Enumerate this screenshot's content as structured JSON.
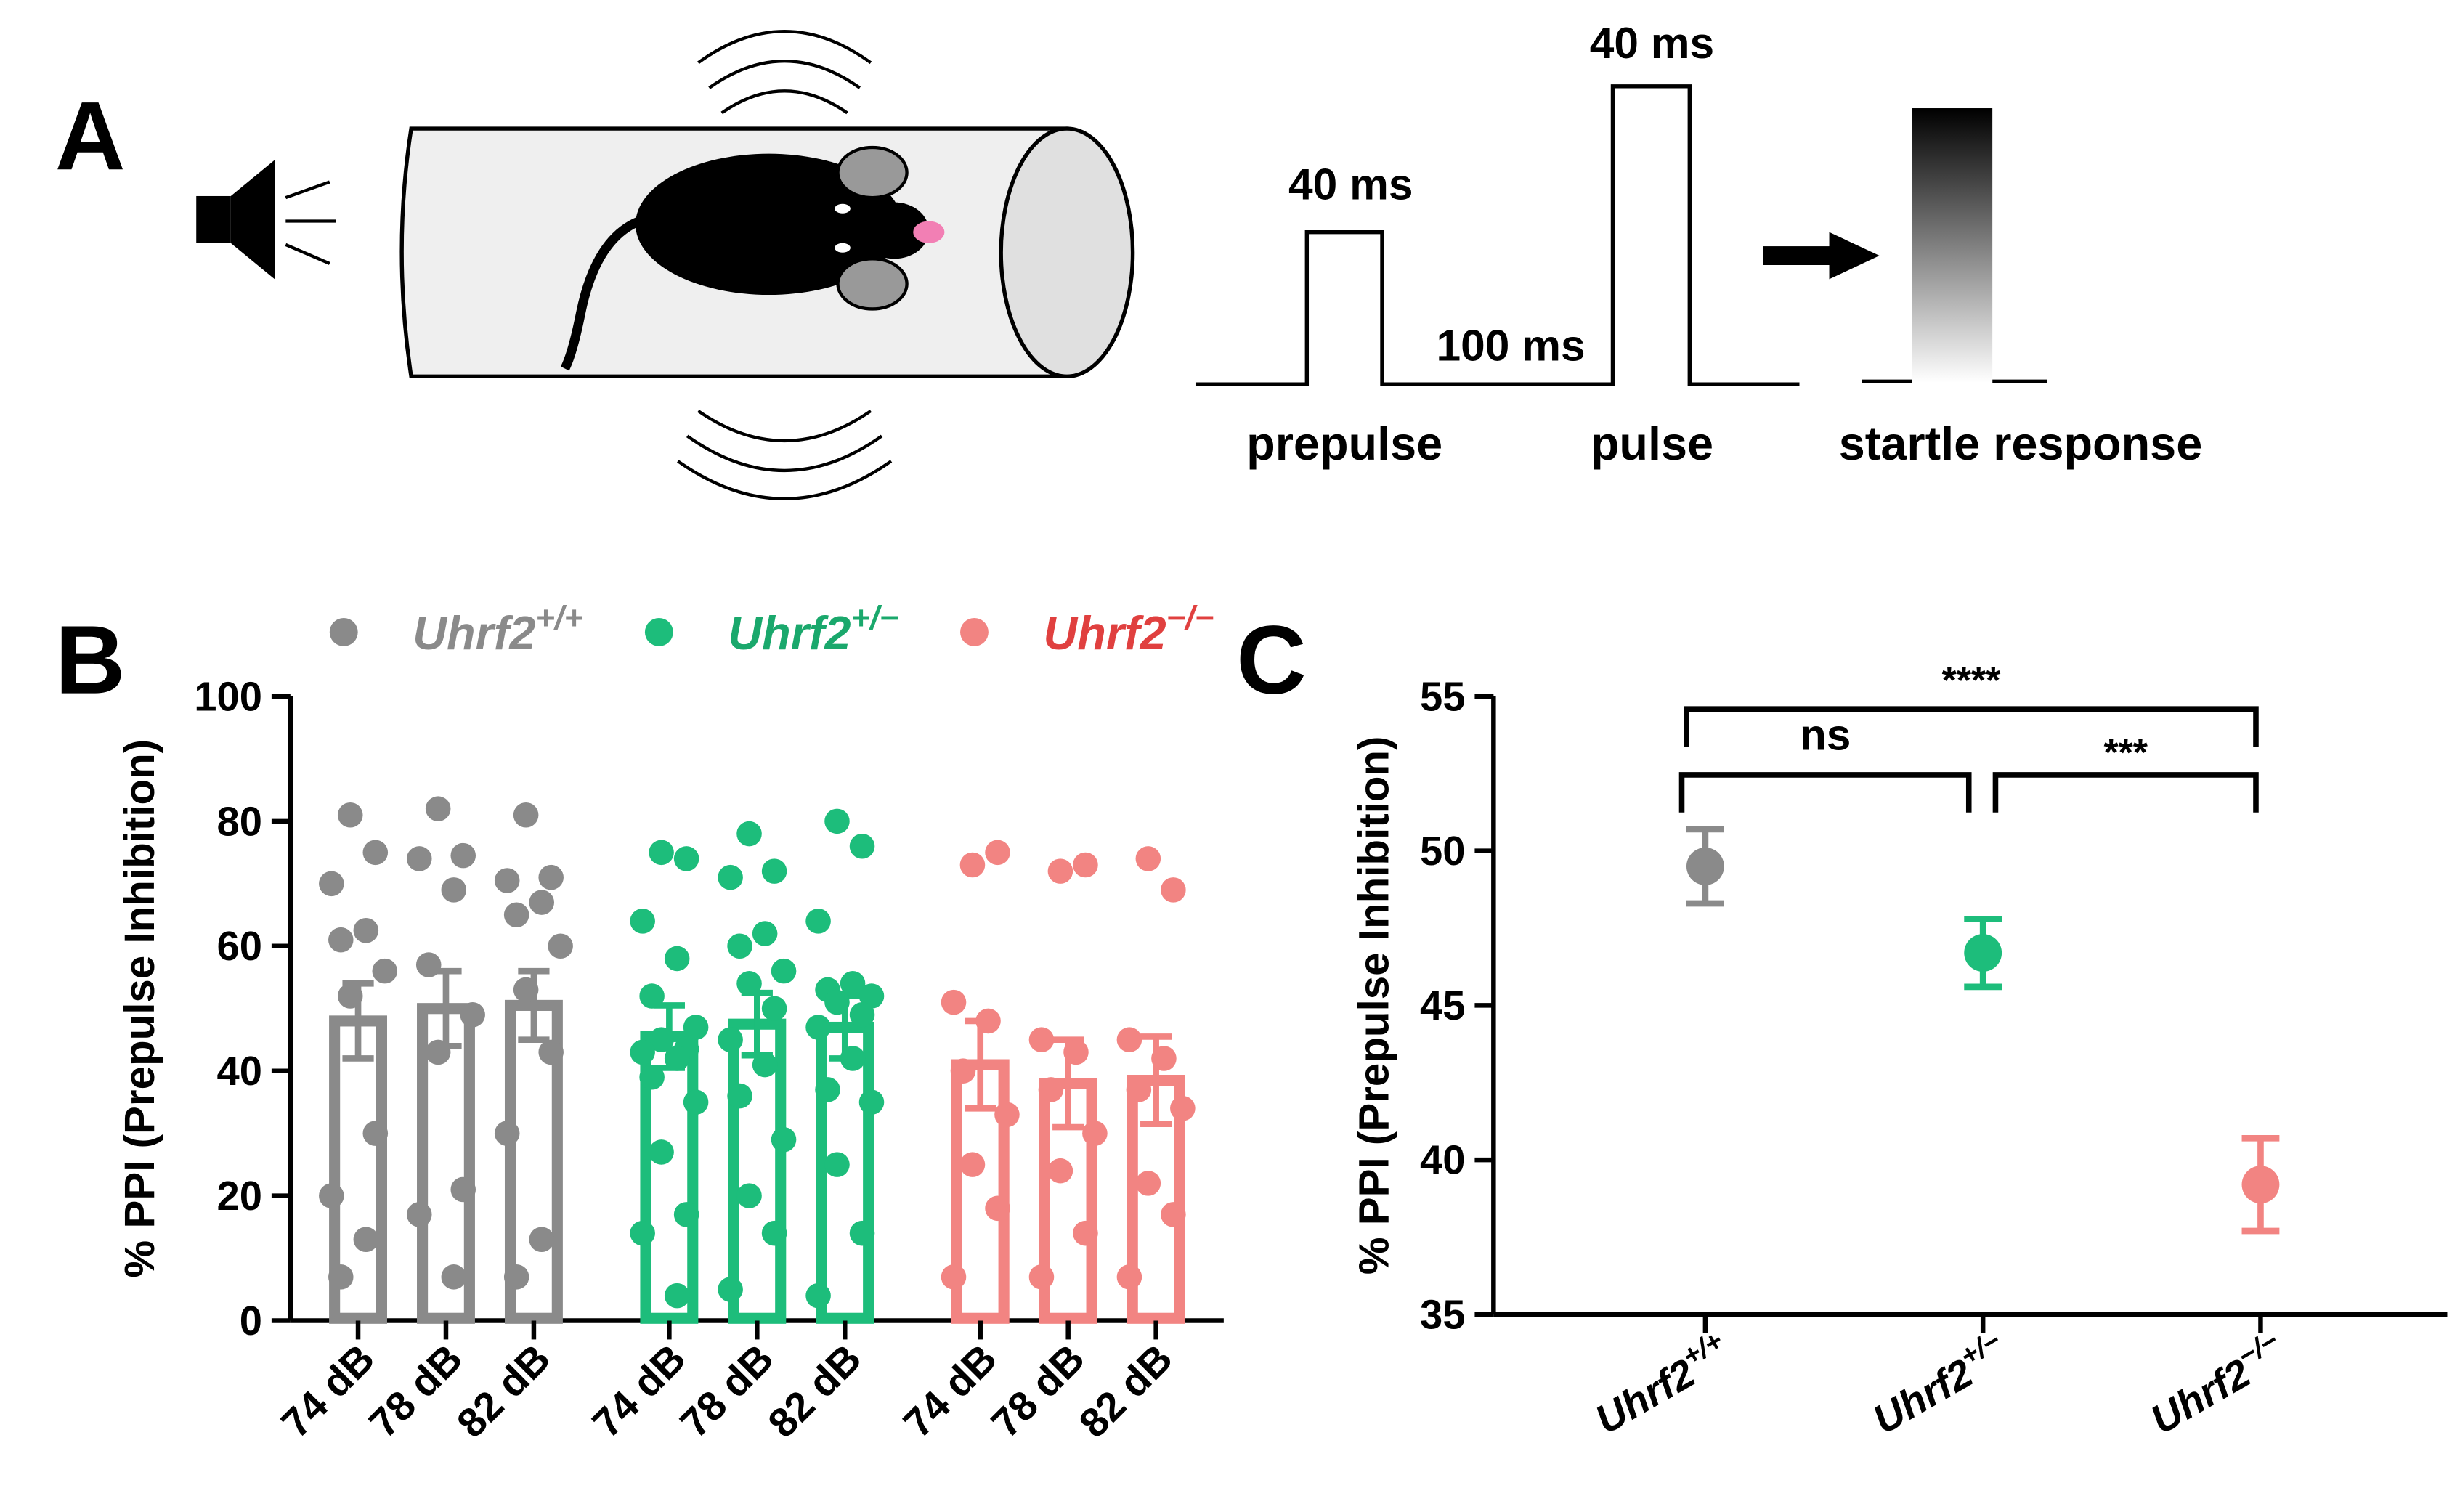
{
  "panel_labels": [
    "A",
    "B",
    "C"
  ],
  "diagram": {
    "prepulse_duration": "40 ms",
    "pulse_duration": "40 ms",
    "interval": "100 ms",
    "labels": [
      "prepulse",
      "pulse",
      "startle response"
    ]
  },
  "chart_data": [
    {
      "type": "bar",
      "y_label": "% PPI (Prepulse Inhibition)",
      "categories": [
        "74 dB",
        "78 dB",
        "82 dB"
      ],
      "ylim": [
        0,
        100
      ],
      "yticks": [
        0,
        20,
        40,
        60,
        80,
        100
      ],
      "series": [
        {
          "name": "Uhrf2",
          "superscript": "+/+",
          "color": "#8a8a8a",
          "label_color": "#8a8a8a",
          "values": [
            48,
            50,
            50.5
          ],
          "errors": [
            6,
            6,
            5.5
          ],
          "points": [
            [
              81,
              75,
              70,
              62.5,
              61,
              56,
              52,
              30,
              20,
              13,
              7
            ],
            [
              82,
              74.5,
              74,
              69,
              57,
              49,
              43,
              21,
              17,
              7
            ],
            [
              81,
              71,
              70.5,
              67,
              65,
              60,
              53,
              43,
              30,
              13,
              7
            ]
          ]
        },
        {
          "name": "Uhrf2",
          "superscript": "+/−",
          "color": "#1dbd7b",
          "label_color": "#1aa86c",
          "values": [
            45.5,
            47.5,
            47
          ],
          "errors": [
            5,
            5,
            5
          ],
          "points": [
            [
              75,
              74,
              64,
              58,
              52,
              47,
              45,
              43.5,
              43,
              42,
              39,
              35,
              27,
              17,
              14,
              4
            ],
            [
              78,
              72,
              71,
              62,
              60,
              56,
              54,
              50,
              45,
              41,
              36,
              29,
              20,
              14,
              5
            ],
            [
              80,
              76,
              64,
              54,
              53,
              52,
              51,
              49,
              47,
              42,
              37,
              35,
              25,
              14,
              4
            ]
          ]
        },
        {
          "name": "Uhrf2",
          "superscript": "−/−",
          "color": "#f28482",
          "label_color": "#e0403f",
          "values": [
            41,
            38,
            38.5
          ],
          "errors": [
            7,
            7,
            7
          ],
          "points": [
            [
              73,
              75,
              51,
              48,
              40,
              33,
              25,
              18,
              7
            ],
            [
              72,
              73,
              45,
              43,
              37,
              30,
              24,
              14,
              7
            ],
            [
              74,
              69,
              45,
              42,
              37,
              34,
              22,
              17,
              7
            ]
          ]
        }
      ]
    },
    {
      "type": "scatter",
      "y_label": "% PPI (Prepulse Inhibition)",
      "categories": [
        "Uhrf2",
        "Uhrf2",
        "Uhrf2"
      ],
      "category_superscripts": [
        "+/+",
        "+/−",
        "−/−"
      ],
      "ylim": [
        35,
        55
      ],
      "yticks": [
        35,
        40,
        45,
        50,
        55
      ],
      "values": [
        49.5,
        46.7,
        39.2
      ],
      "errors": [
        1.2,
        1.1,
        1.5
      ],
      "colors": [
        "#8a8a8a",
        "#1dbd7b",
        "#f28482"
      ],
      "annotations": [
        "ns",
        "***",
        "****"
      ]
    }
  ]
}
